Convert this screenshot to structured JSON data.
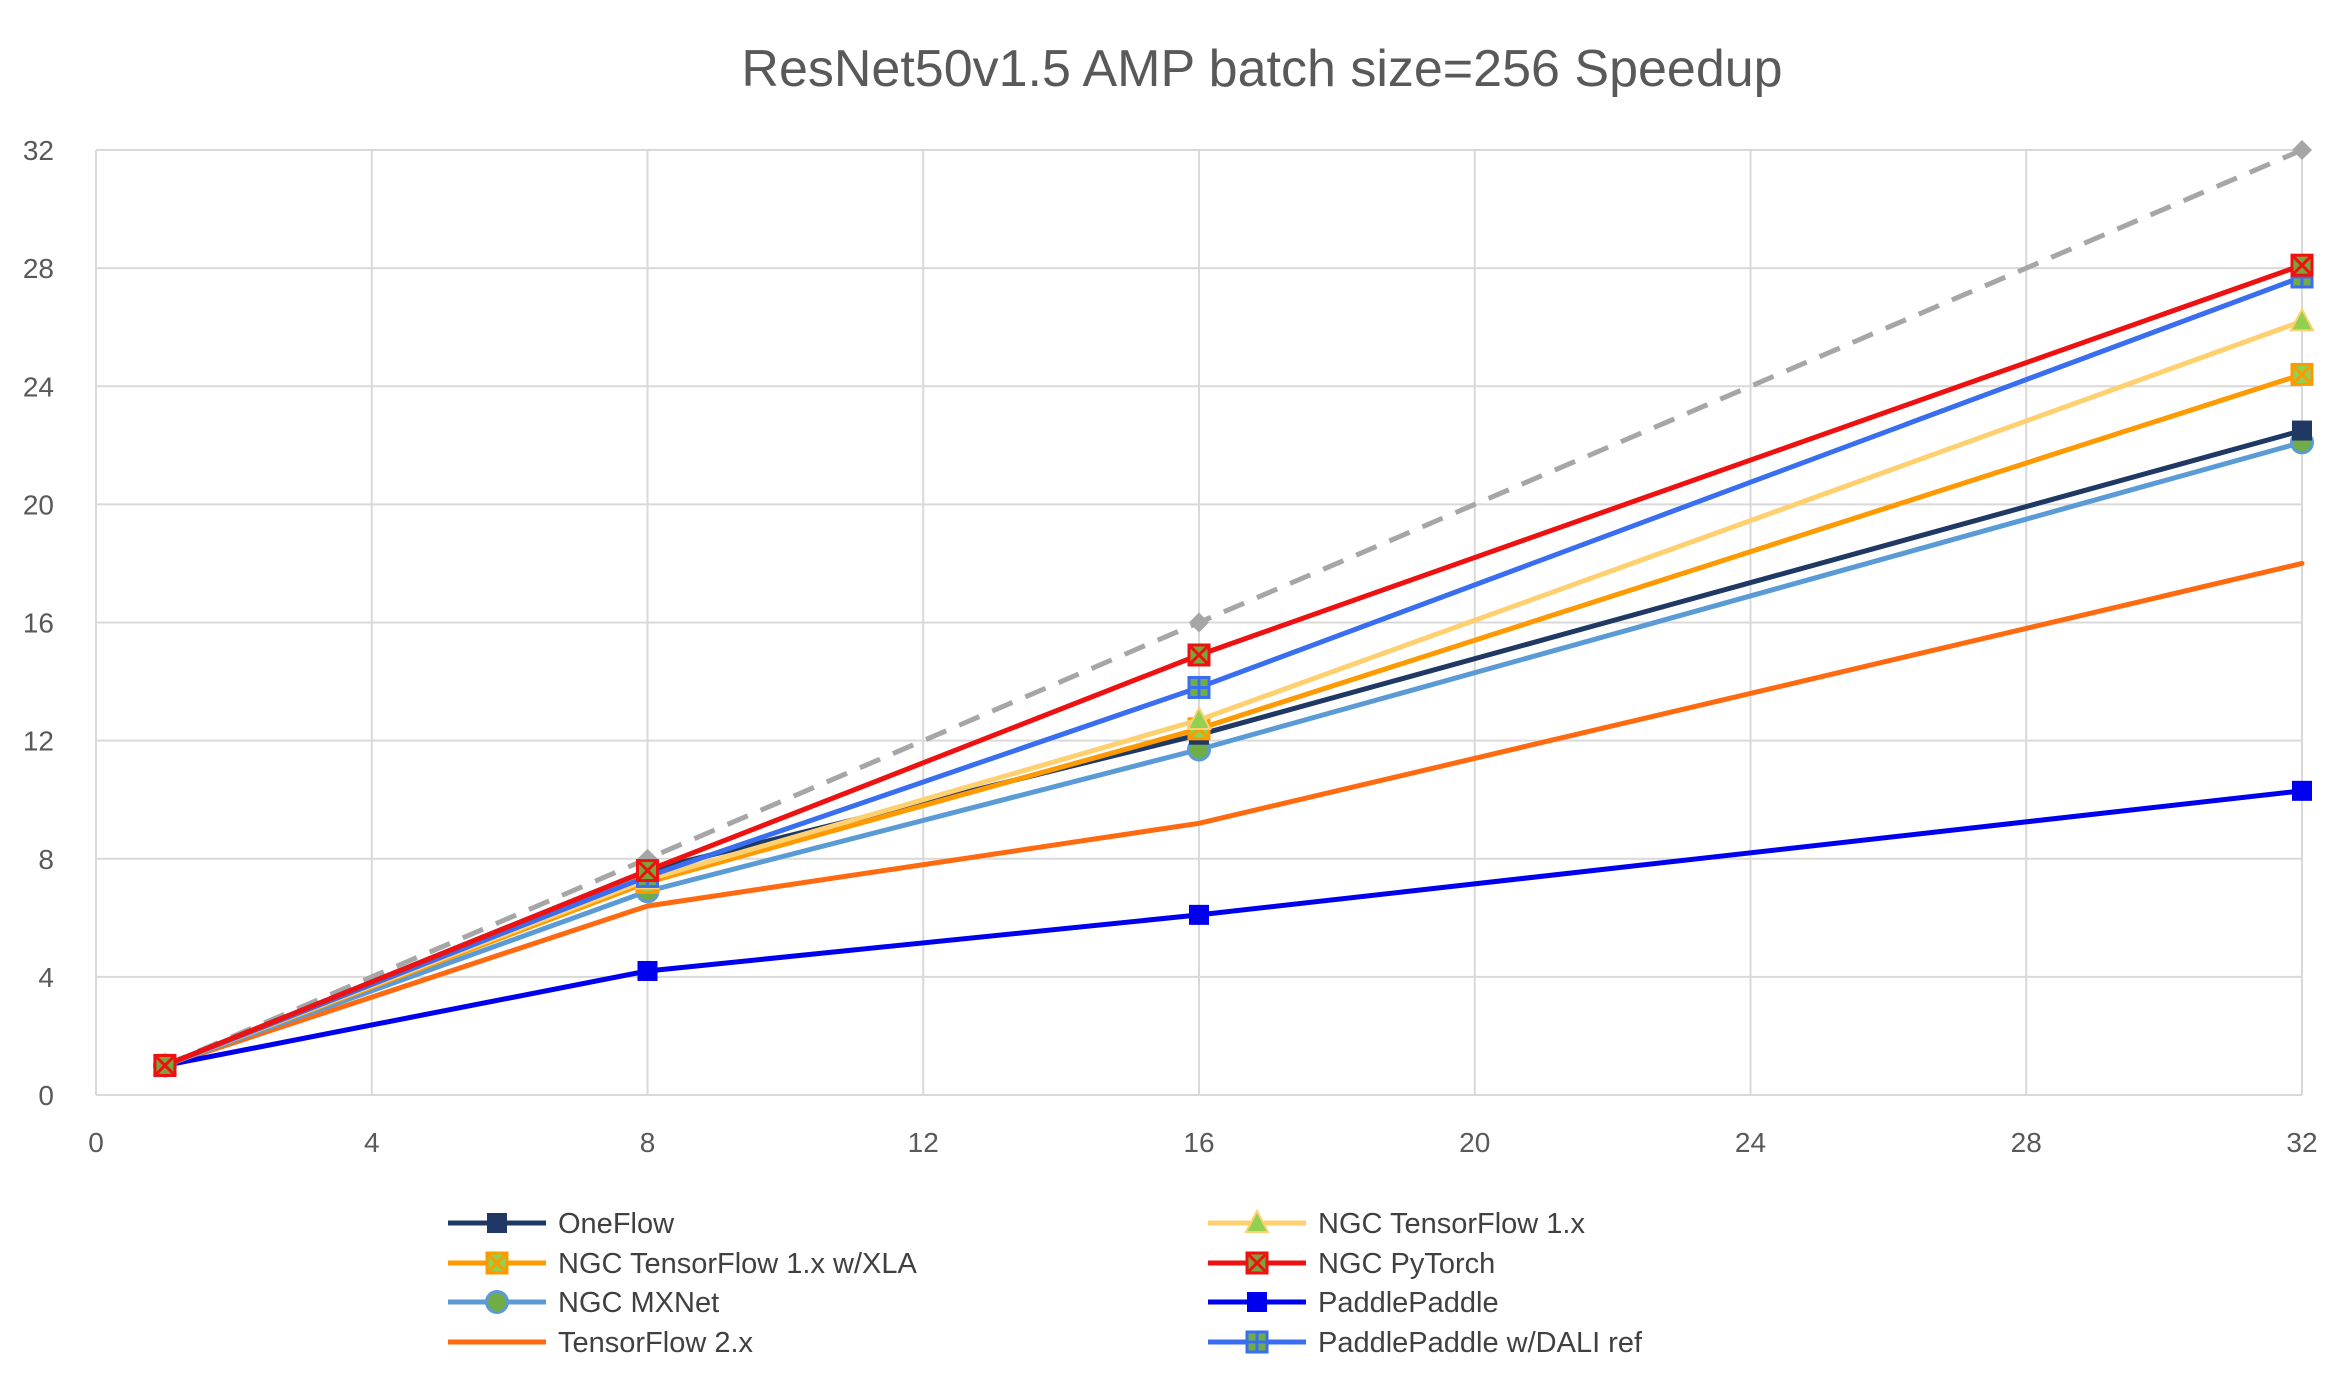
{
  "chart_data": {
    "type": "line",
    "title": "ResNet50v1.5 AMP batch size=256 Speedup",
    "xlabel": "",
    "ylabel": "",
    "xlim": [
      0,
      32
    ],
    "ylim": [
      0,
      32
    ],
    "xticks": [
      0,
      4,
      8,
      12,
      16,
      20,
      24,
      28,
      32
    ],
    "yticks": [
      0,
      4,
      8,
      12,
      16,
      20,
      24,
      28,
      32
    ],
    "grid": true,
    "legend_position": "bottom",
    "series": [
      {
        "name": "OneFlow",
        "color": "#1f3864",
        "marker": "square",
        "dash": false,
        "points": [
          [
            1,
            1
          ],
          [
            8,
            7.6
          ],
          [
            16,
            12.2
          ],
          [
            32,
            22.5
          ]
        ]
      },
      {
        "name": "NGC TensorFlow 1.x",
        "color": "#ffd070",
        "marker": "triangle",
        "dash": false,
        "points": [
          [
            1,
            1
          ],
          [
            8,
            7.3
          ],
          [
            16,
            12.7
          ],
          [
            32,
            26.2
          ]
        ]
      },
      {
        "name": "NGC TensorFlow 1.x w/XLA",
        "color": "#ff9900",
        "marker": "square-x",
        "dash": false,
        "points": [
          [
            1,
            1
          ],
          [
            8,
            7.2
          ],
          [
            16,
            12.4
          ],
          [
            32,
            24.4
          ]
        ]
      },
      {
        "name": "NGC PyTorch",
        "color": "#ee1111",
        "marker": "square-x-red",
        "dash": false,
        "points": [
          [
            1,
            1
          ],
          [
            8,
            7.6
          ],
          [
            16,
            14.9
          ],
          [
            32,
            28.1
          ]
        ]
      },
      {
        "name": "NGC MXNet",
        "color": "#5b9bd5",
        "marker": "circle",
        "dash": false,
        "points": [
          [
            1,
            1
          ],
          [
            8,
            6.9
          ],
          [
            16,
            11.7
          ],
          [
            32,
            22.1
          ]
        ]
      },
      {
        "name": "PaddlePaddle",
        "color": "#0000ee",
        "marker": "square-blue",
        "dash": false,
        "points": [
          [
            1,
            1
          ],
          [
            8,
            4.2
          ],
          [
            16,
            6.1
          ],
          [
            32,
            10.3
          ]
        ]
      },
      {
        "name": "TensorFlow 2.x",
        "color": "#ff6a10",
        "marker": "none",
        "dash": false,
        "points": [
          [
            1,
            1
          ],
          [
            8,
            6.4
          ],
          [
            16,
            9.2
          ],
          [
            32,
            18
          ]
        ]
      },
      {
        "name": "PaddlePaddle w/DALI ref",
        "color": "#3a6ef0",
        "marker": "square-plus",
        "dash": false,
        "points": [
          [
            1,
            1
          ],
          [
            8,
            7.4
          ],
          [
            16,
            13.8
          ],
          [
            32,
            27.7
          ]
        ]
      },
      {
        "name": "",
        "color": "#a6a6a6",
        "marker": "diamond",
        "dash": true,
        "legend": false,
        "points": [
          [
            1,
            1
          ],
          [
            8,
            8
          ],
          [
            16,
            16
          ],
          [
            32,
            32
          ]
        ]
      }
    ]
  }
}
